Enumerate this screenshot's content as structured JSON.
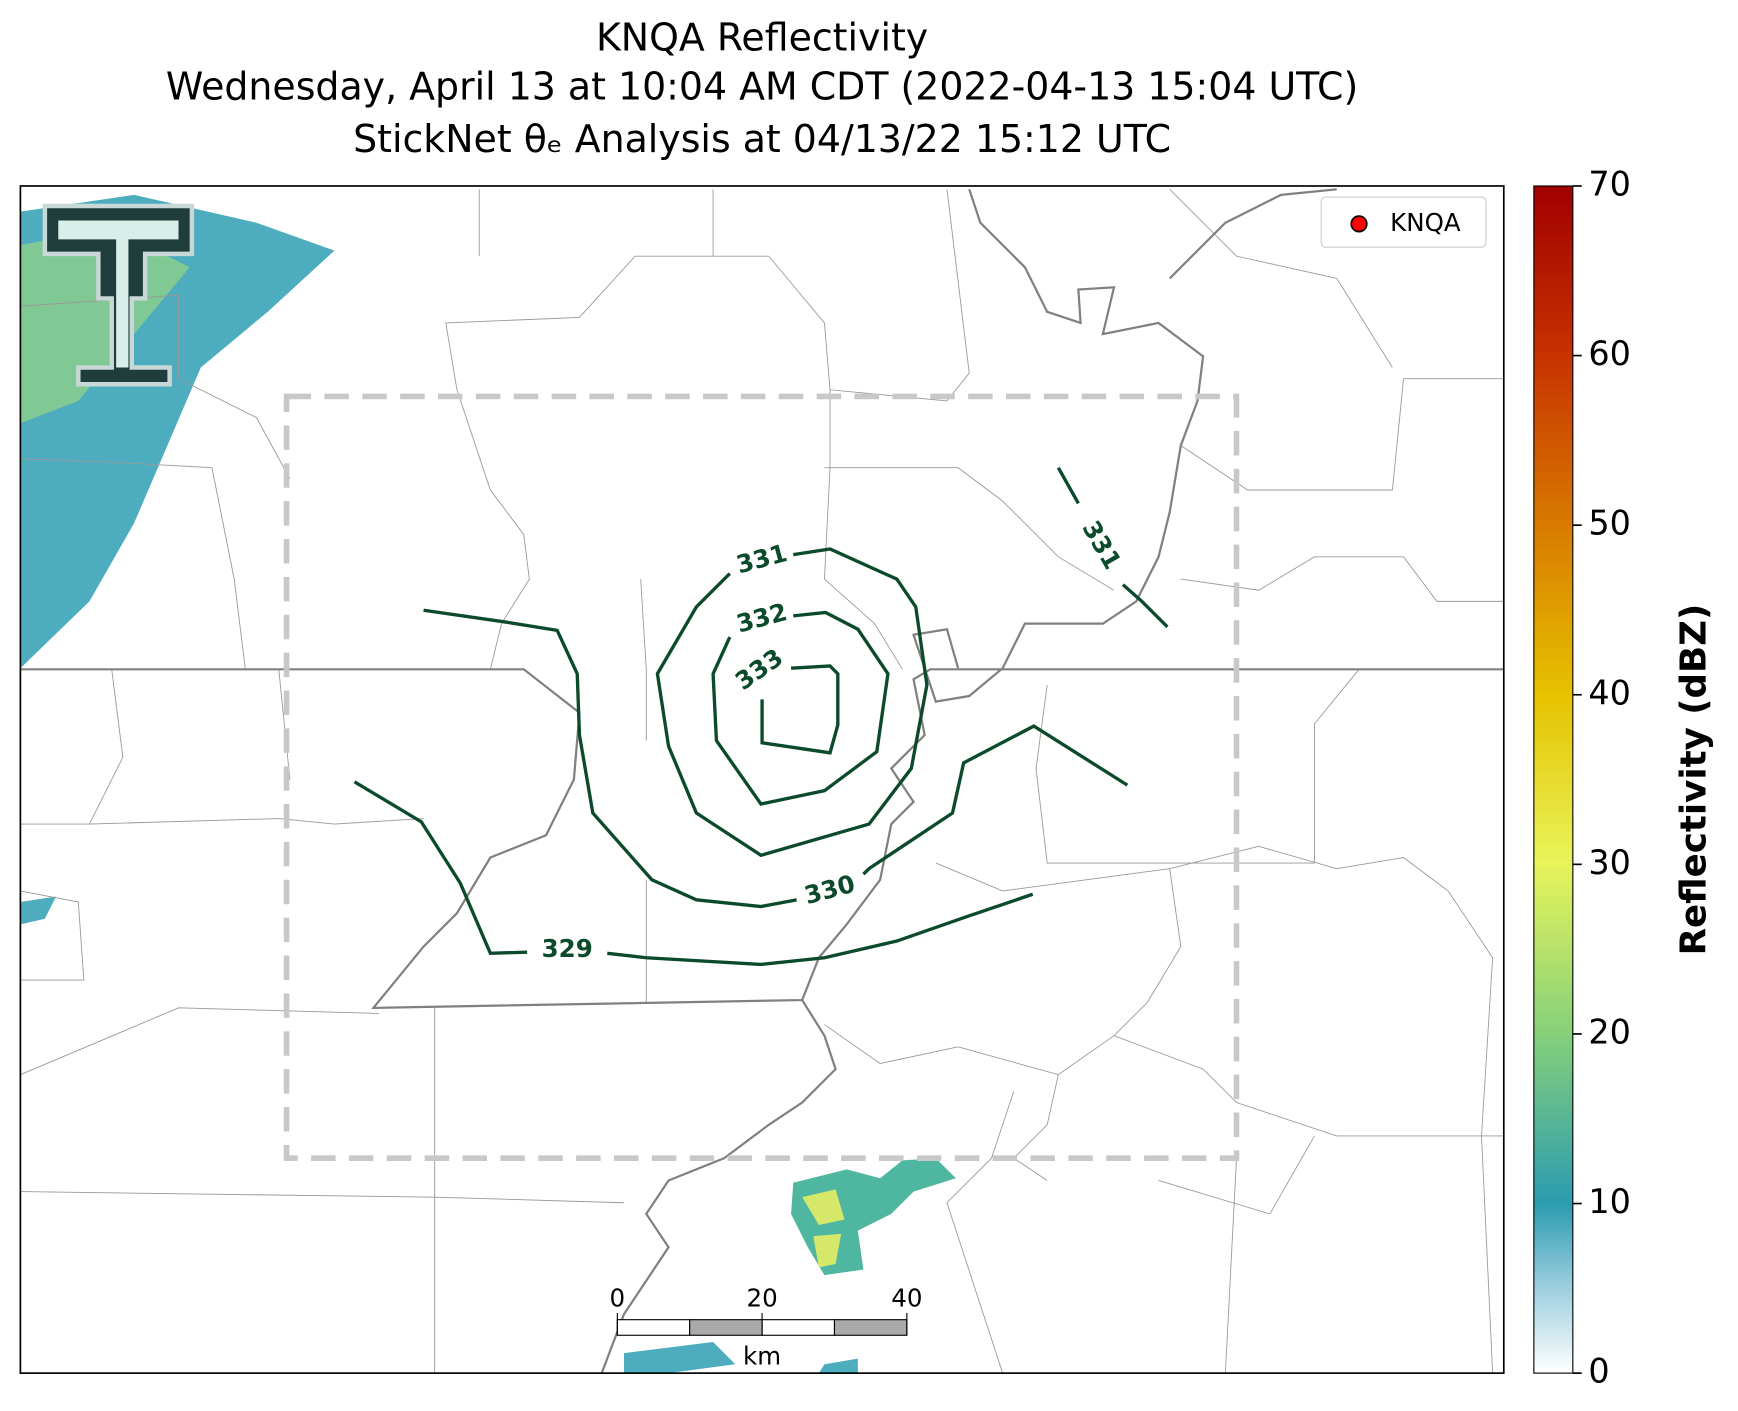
{
  "title": [
    "KNQA Reflectivity",
    "Wednesday, April 13 at 10:04 AM CDT (2022-04-13 15:04 UTC)",
    "StickNet θₑ Analysis at 04/13/22 15:12 UTC"
  ],
  "legend": {
    "label": "KNQA",
    "color": "#ff0000"
  },
  "colorbar": {
    "label": "Reflectivity (dBZ)",
    "lim": [
      0,
      70
    ],
    "ticks": [
      0,
      10,
      20,
      30,
      40,
      50,
      60,
      70
    ]
  },
  "contour_levels": [
    329,
    330,
    331,
    332,
    333
  ],
  "contour_color": "#0b4a2a",
  "scalebar": {
    "lim": [
      0,
      40
    ],
    "ticks": [
      0,
      20,
      40
    ],
    "unit": "km"
  }
}
